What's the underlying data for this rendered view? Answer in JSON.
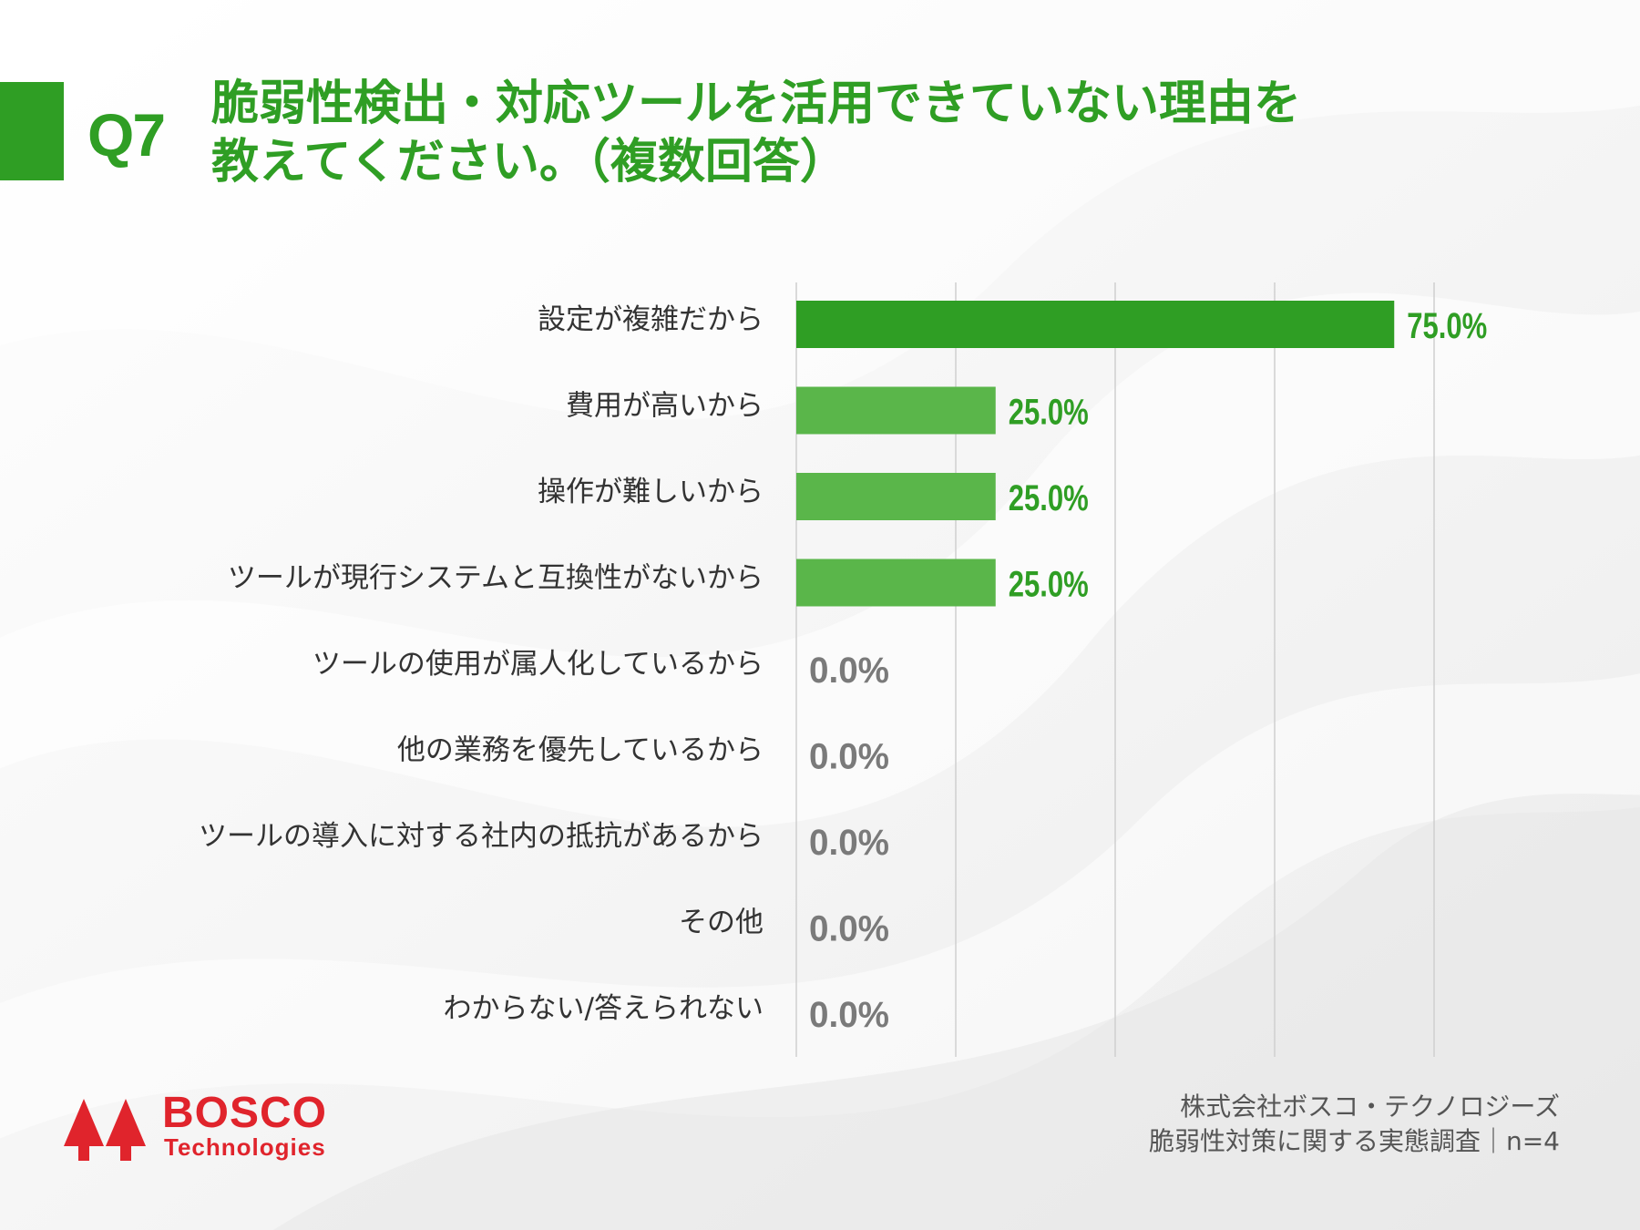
{
  "question": {
    "number": "Q7",
    "title_line1": "脆弱性検出・対応ツールを活用できていない理由を",
    "title_line2": "教えてください。（複数回答）"
  },
  "colors": {
    "accent": "#2f9e24",
    "bar_top": "#2f9e24",
    "bar_other": "#5ab64a",
    "zero_label": "#7a7a7a",
    "logo_red": "#e0242c"
  },
  "chart_data": {
    "type": "bar",
    "orientation": "horizontal",
    "categories": [
      "設定が複雑だから",
      "費用が高いから",
      "操作が難しいから",
      "ツールが現行システムと互換性がないから",
      "ツールの使用が属人化しているから",
      "他の業務を優先しているから",
      "ツールの導入に対する社内の抵抗があるから",
      "その他",
      "わからない/答えられない"
    ],
    "values": [
      75.0,
      25.0,
      25.0,
      25.0,
      0.0,
      0.0,
      0.0,
      0.0,
      0.0
    ],
    "value_labels": [
      "75.0%",
      "25.0%",
      "25.0%",
      "25.0%",
      "0.0%",
      "0.0%",
      "0.0%",
      "0.0%",
      "0.0%"
    ],
    "xlim": [
      0,
      80
    ],
    "grid_step": 20,
    "grid": true
  },
  "footer": {
    "line1": "株式会社ボスコ・テクノロジーズ",
    "line2": "脆弱性対策に関する実態調査｜n=4"
  },
  "logo": {
    "name": "BOSCO",
    "sub": "Technologies",
    "icon": "twin-tree-logo-icon"
  }
}
